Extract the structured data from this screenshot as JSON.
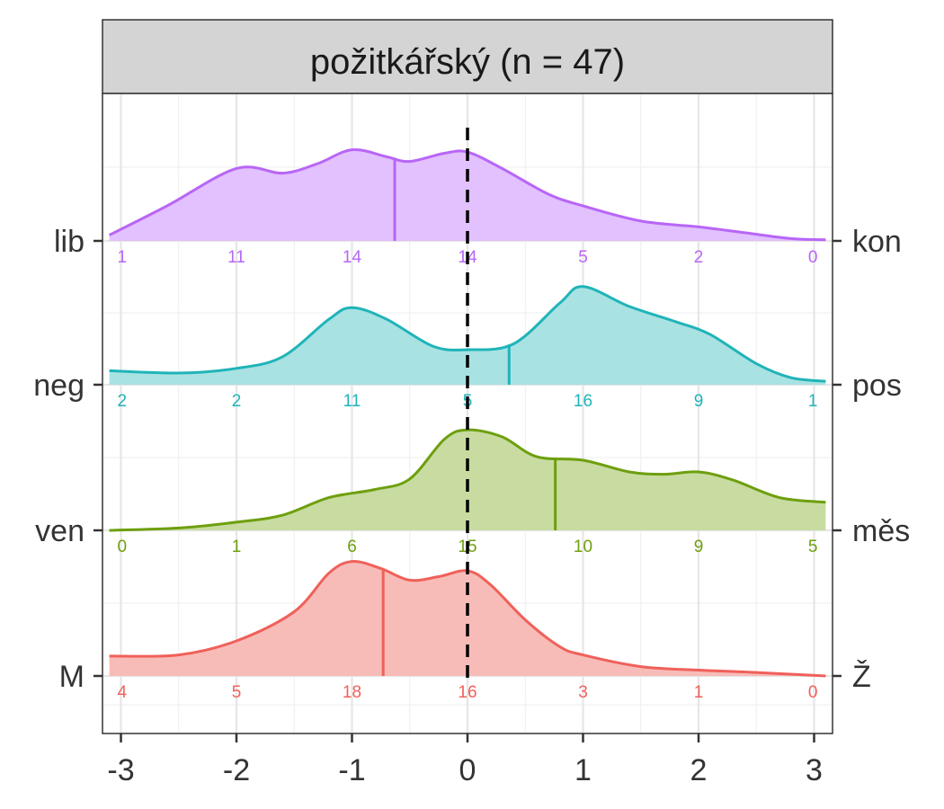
{
  "chart_data": {
    "type": "ridgeline-density",
    "facet_title": "požitkářský (n = 47)",
    "x_ticks": [
      "-3",
      "-2",
      "-1",
      "0",
      "1",
      "2",
      "3"
    ],
    "xlim": [
      -3.1,
      3.1
    ],
    "reference_line_x": 0,
    "ridges": [
      {
        "left_label": "M",
        "right_label": "Ž",
        "color": "#F0605A",
        "fill": "#F8B8B4",
        "mean": -0.73,
        "counts": [
          "4",
          "5",
          "18",
          "16",
          "3",
          "1",
          "0"
        ],
        "density": [
          [
            -3.1,
            0.17
          ],
          [
            -2.5,
            0.18
          ],
          [
            -2.0,
            0.3
          ],
          [
            -1.5,
            0.55
          ],
          [
            -1.2,
            0.88
          ],
          [
            -1.0,
            0.98
          ],
          [
            -0.75,
            0.92
          ],
          [
            -0.5,
            0.82
          ],
          [
            -0.25,
            0.85
          ],
          [
            0.0,
            0.9
          ],
          [
            0.2,
            0.78
          ],
          [
            0.5,
            0.48
          ],
          [
            0.8,
            0.25
          ],
          [
            1.0,
            0.18
          ],
          [
            1.5,
            0.08
          ],
          [
            2.0,
            0.05
          ],
          [
            2.5,
            0.03
          ],
          [
            3.1,
            0.0
          ]
        ]
      },
      {
        "left_label": "ven",
        "right_label": "měs",
        "color": "#6E9F0E",
        "fill": "#C5DA9C",
        "mean": 0.76,
        "counts": [
          "0",
          "1",
          "6",
          "15",
          "10",
          "9",
          "5"
        ],
        "density": [
          [
            -3.1,
            0.0
          ],
          [
            -2.5,
            0.02
          ],
          [
            -2.0,
            0.07
          ],
          [
            -1.6,
            0.13
          ],
          [
            -1.2,
            0.28
          ],
          [
            -0.8,
            0.35
          ],
          [
            -0.5,
            0.44
          ],
          [
            -0.2,
            0.78
          ],
          [
            0.0,
            0.86
          ],
          [
            0.3,
            0.8
          ],
          [
            0.6,
            0.63
          ],
          [
            1.0,
            0.6
          ],
          [
            1.4,
            0.5
          ],
          [
            1.7,
            0.48
          ],
          [
            2.0,
            0.5
          ],
          [
            2.3,
            0.43
          ],
          [
            2.7,
            0.28
          ],
          [
            3.1,
            0.24
          ]
        ]
      },
      {
        "left_label": "neg",
        "right_label": "pos",
        "color": "#1FB4B8",
        "fill": "#A4E0E2",
        "mean": 0.36,
        "counts": [
          "2",
          "2",
          "11",
          "5",
          "16",
          "9",
          "1"
        ],
        "density": [
          [
            -3.1,
            0.12
          ],
          [
            -2.5,
            0.1
          ],
          [
            -2.0,
            0.14
          ],
          [
            -1.6,
            0.24
          ],
          [
            -1.2,
            0.56
          ],
          [
            -1.0,
            0.66
          ],
          [
            -0.7,
            0.56
          ],
          [
            -0.3,
            0.33
          ],
          [
            0.0,
            0.3
          ],
          [
            0.4,
            0.35
          ],
          [
            0.8,
            0.7
          ],
          [
            1.0,
            0.84
          ],
          [
            1.4,
            0.67
          ],
          [
            1.8,
            0.54
          ],
          [
            2.1,
            0.43
          ],
          [
            2.5,
            0.18
          ],
          [
            2.8,
            0.06
          ],
          [
            3.1,
            0.03
          ]
        ]
      },
      {
        "left_label": "lib",
        "right_label": "kon",
        "color": "#B866F6",
        "fill": "#E1BDFE",
        "mean": -0.63,
        "counts": [
          "1",
          "11",
          "14",
          "14",
          "5",
          "2",
          "0"
        ],
        "density": [
          [
            -3.1,
            0.05
          ],
          [
            -2.6,
            0.3
          ],
          [
            -2.0,
            0.62
          ],
          [
            -1.6,
            0.58
          ],
          [
            -1.3,
            0.66
          ],
          [
            -1.0,
            0.78
          ],
          [
            -0.7,
            0.72
          ],
          [
            -0.5,
            0.68
          ],
          [
            -0.2,
            0.75
          ],
          [
            0.0,
            0.76
          ],
          [
            0.3,
            0.62
          ],
          [
            0.7,
            0.4
          ],
          [
            1.0,
            0.3
          ],
          [
            1.5,
            0.17
          ],
          [
            2.0,
            0.12
          ],
          [
            2.4,
            0.07
          ],
          [
            2.8,
            0.02
          ],
          [
            3.1,
            0.01
          ]
        ]
      }
    ]
  }
}
